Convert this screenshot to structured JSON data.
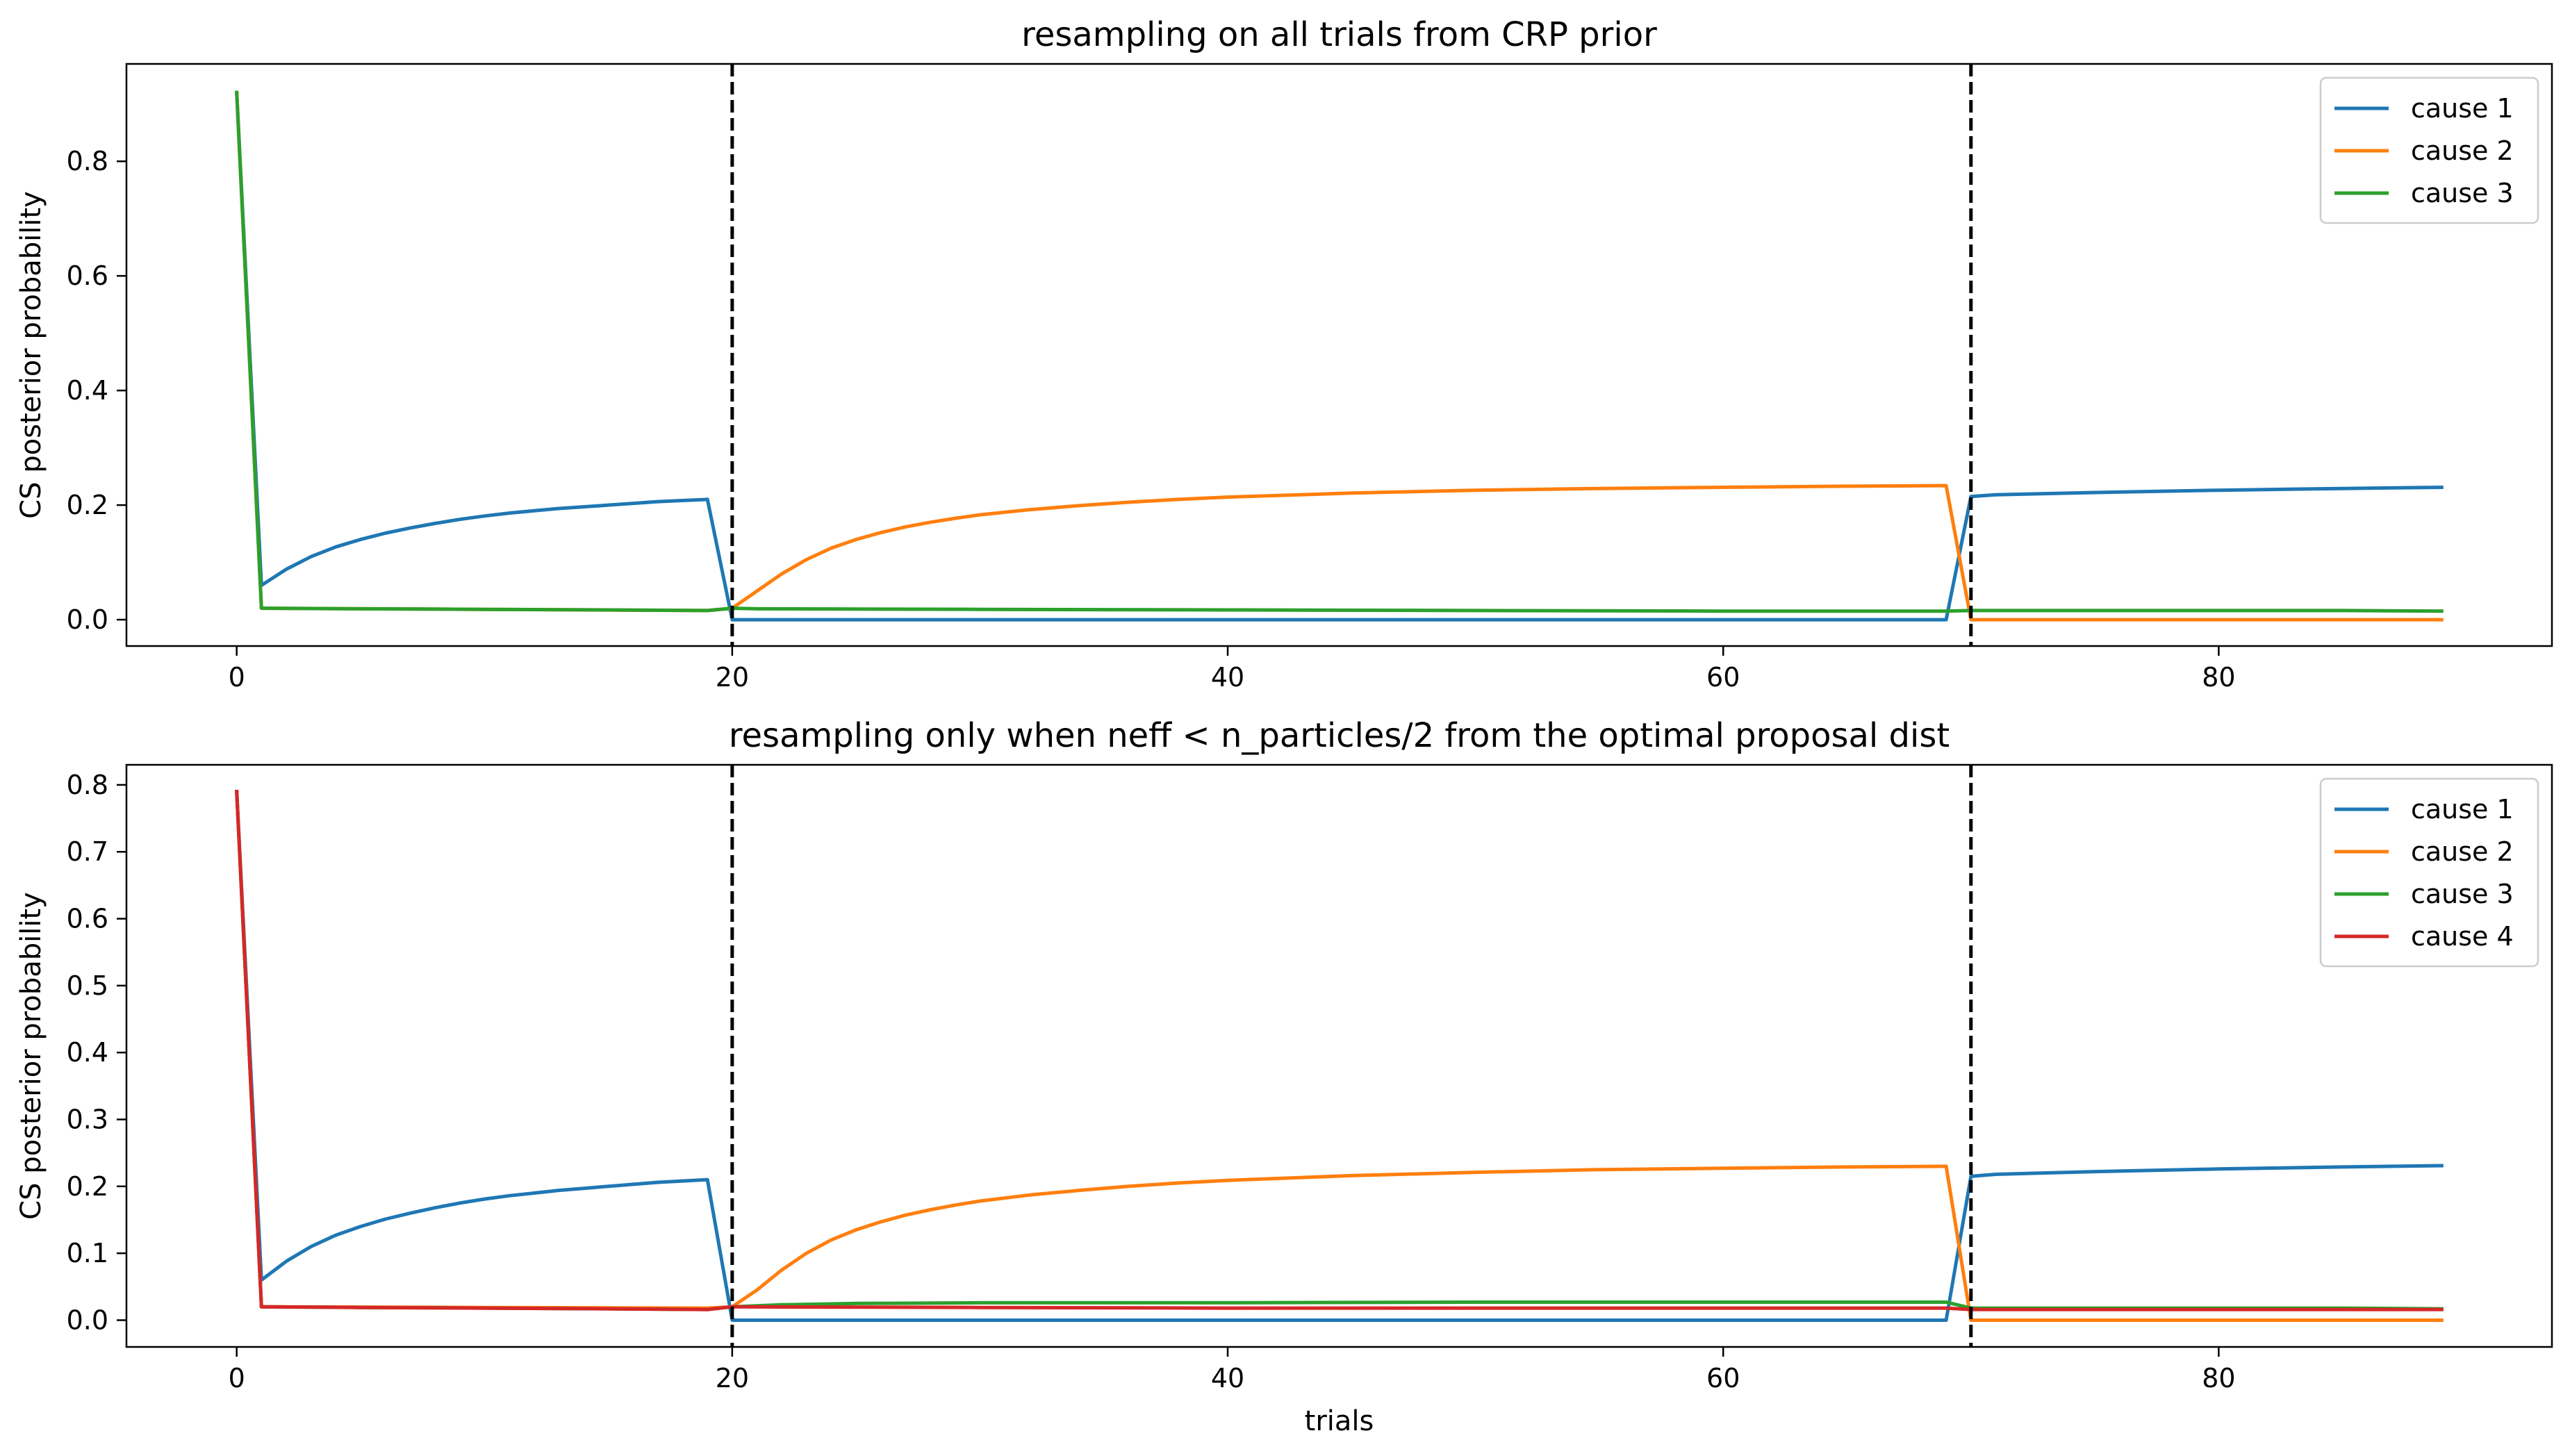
{
  "chart_data": [
    {
      "type": "line",
      "title": "resampling on all trials from CRP prior",
      "xlabel": "",
      "ylabel": "CS posterior probability",
      "xlim": [
        -4.45,
        93.45
      ],
      "ylim": [
        -0.046,
        0.97
      ],
      "xticks": [
        0,
        20,
        40,
        60,
        80
      ],
      "yticks": [
        0.0,
        0.2,
        0.4,
        0.6,
        0.8
      ],
      "xtick_labels": [
        "0",
        "20",
        "40",
        "60",
        "80"
      ],
      "ytick_labels": [
        "0.0",
        "0.2",
        "0.4",
        "0.6",
        "0.8"
      ],
      "vlines": [
        20,
        70
      ],
      "legend_position": "upper right",
      "series": [
        {
          "name": "cause 1",
          "color": "#1f77b4",
          "x": [
            0,
            1,
            2,
            3,
            4,
            5,
            6,
            7,
            8,
            9,
            10,
            11,
            12,
            13,
            14,
            15,
            16,
            17,
            18,
            19,
            20,
            21,
            30,
            40,
            50,
            60,
            69,
            70,
            71,
            75,
            80,
            85,
            89
          ],
          "y": [
            0.92,
            0.06,
            0.088,
            0.11,
            0.127,
            0.14,
            0.151,
            0.16,
            0.168,
            0.175,
            0.181,
            0.186,
            0.19,
            0.194,
            0.197,
            0.2,
            0.203,
            0.206,
            0.208,
            0.21,
            0.0,
            0.0,
            0.0,
            0.0,
            0.0,
            0.0,
            0.0,
            0.215,
            0.218,
            0.222,
            0.226,
            0.229,
            0.231
          ]
        },
        {
          "name": "cause 2",
          "color": "#ff7f0e",
          "x": [
            0,
            1,
            10,
            19,
            20,
            21,
            22,
            23,
            24,
            25,
            26,
            27,
            28,
            29,
            30,
            32,
            34,
            36,
            38,
            40,
            45,
            50,
            55,
            60,
            65,
            69,
            70,
            75,
            80,
            85,
            89
          ],
          "y": [
            0.92,
            0.02,
            0.018,
            0.016,
            0.02,
            0.05,
            0.08,
            0.105,
            0.125,
            0.14,
            0.152,
            0.162,
            0.17,
            0.177,
            0.183,
            0.192,
            0.199,
            0.205,
            0.21,
            0.214,
            0.221,
            0.226,
            0.229,
            0.231,
            0.233,
            0.234,
            0.0,
            0.0,
            0.0,
            0.0,
            0.0
          ]
        },
        {
          "name": "cause 3",
          "color": "#2ca02c",
          "x": [
            0,
            1,
            5,
            10,
            15,
            19,
            20,
            21,
            30,
            40,
            50,
            60,
            69,
            70,
            75,
            80,
            85,
            89
          ],
          "y": [
            0.92,
            0.02,
            0.019,
            0.018,
            0.017,
            0.016,
            0.02,
            0.019,
            0.018,
            0.017,
            0.016,
            0.015,
            0.015,
            0.016,
            0.016,
            0.016,
            0.016,
            0.015
          ]
        }
      ]
    },
    {
      "type": "line",
      "title": "resampling only when neff < n_particles/2 from the optimal proposal dist",
      "xlabel": "trials",
      "ylabel": "CS posterior probability",
      "xlim": [
        -4.45,
        93.45
      ],
      "ylim": [
        -0.04,
        0.83
      ],
      "xticks": [
        0,
        20,
        40,
        60,
        80
      ],
      "yticks": [
        0.0,
        0.1,
        0.2,
        0.3,
        0.4,
        0.5,
        0.6,
        0.7,
        0.8
      ],
      "xtick_labels": [
        "0",
        "20",
        "40",
        "60",
        "80"
      ],
      "ytick_labels": [
        "0.0",
        "0.1",
        "0.2",
        "0.3",
        "0.4",
        "0.5",
        "0.6",
        "0.7",
        "0.8"
      ],
      "vlines": [
        20,
        70
      ],
      "legend_position": "upper right",
      "series": [
        {
          "name": "cause 1",
          "color": "#1f77b4",
          "x": [
            0,
            1,
            2,
            3,
            4,
            5,
            6,
            7,
            8,
            9,
            10,
            11,
            12,
            13,
            14,
            15,
            16,
            17,
            18,
            19,
            20,
            21,
            30,
            40,
            50,
            60,
            69,
            70,
            71,
            75,
            80,
            85,
            89
          ],
          "y": [
            0.79,
            0.06,
            0.088,
            0.11,
            0.127,
            0.14,
            0.151,
            0.16,
            0.168,
            0.175,
            0.181,
            0.186,
            0.19,
            0.194,
            0.197,
            0.2,
            0.203,
            0.206,
            0.208,
            0.21,
            0.0,
            0.0,
            0.0,
            0.0,
            0.0,
            0.0,
            0.0,
            0.215,
            0.218,
            0.222,
            0.226,
            0.229,
            0.231
          ]
        },
        {
          "name": "cause 2",
          "color": "#ff7f0e",
          "x": [
            0,
            1,
            10,
            19,
            20,
            21,
            22,
            23,
            24,
            25,
            26,
            27,
            28,
            29,
            30,
            32,
            34,
            36,
            38,
            40,
            45,
            50,
            55,
            60,
            65,
            69,
            70,
            75,
            80,
            85,
            89
          ],
          "y": [
            0.79,
            0.02,
            0.019,
            0.018,
            0.02,
            0.045,
            0.075,
            0.1,
            0.12,
            0.135,
            0.147,
            0.157,
            0.165,
            0.172,
            0.178,
            0.187,
            0.194,
            0.2,
            0.205,
            0.209,
            0.216,
            0.221,
            0.225,
            0.227,
            0.229,
            0.23,
            0.0,
            0.0,
            0.0,
            0.0,
            0.0
          ]
        },
        {
          "name": "cause 3",
          "color": "#2ca02c",
          "x": [
            0,
            1,
            5,
            10,
            15,
            19,
            20,
            22,
            25,
            30,
            40,
            50,
            60,
            69,
            70,
            75,
            80,
            85,
            89
          ],
          "y": [
            0.79,
            0.02,
            0.019,
            0.018,
            0.017,
            0.016,
            0.02,
            0.023,
            0.025,
            0.026,
            0.026,
            0.027,
            0.027,
            0.027,
            0.018,
            0.018,
            0.018,
            0.018,
            0.017
          ]
        },
        {
          "name": "cause 4",
          "color": "#d62728",
          "x": [
            0,
            1,
            5,
            10,
            15,
            19,
            20,
            30,
            40,
            50,
            60,
            69,
            70,
            80,
            89
          ],
          "y": [
            0.79,
            0.02,
            0.019,
            0.018,
            0.017,
            0.016,
            0.02,
            0.019,
            0.018,
            0.018,
            0.018,
            0.018,
            0.016,
            0.016,
            0.016
          ]
        }
      ]
    }
  ]
}
